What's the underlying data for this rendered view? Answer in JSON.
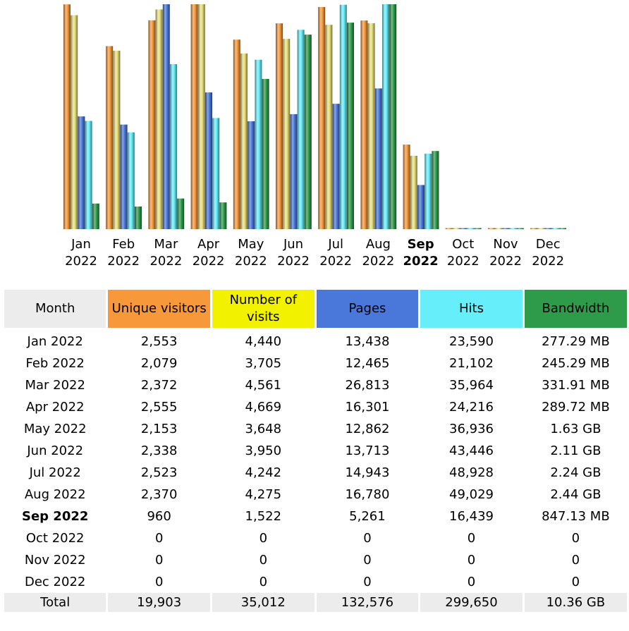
{
  "chart_data": {
    "type": "bar",
    "current_month": "Sep 2022",
    "categories": [
      "Jan 2022",
      "Feb 2022",
      "Mar 2022",
      "Apr 2022",
      "May 2022",
      "Jun 2022",
      "Jul 2022",
      "Aug 2022",
      "Sep 2022",
      "Oct 2022",
      "Nov 2022",
      "Dec 2022"
    ],
    "tick_labels": [
      {
        "m": "Jan",
        "y": "2022"
      },
      {
        "m": "Feb",
        "y": "2022"
      },
      {
        "m": "Mar",
        "y": "2022"
      },
      {
        "m": "Apr",
        "y": "2022"
      },
      {
        "m": "May",
        "y": "2022"
      },
      {
        "m": "Jun",
        "y": "2022"
      },
      {
        "m": "Jul",
        "y": "2022"
      },
      {
        "m": "Aug",
        "y": "2022"
      },
      {
        "m": "Sep",
        "y": "2022"
      },
      {
        "m": "Oct",
        "y": "2022"
      },
      {
        "m": "Nov",
        "y": "2022"
      },
      {
        "m": "Dec",
        "y": "2022"
      }
    ],
    "series": [
      {
        "name": "Unique visitors",
        "color": "#f7983a",
        "values": [
          2553,
          2079,
          2372,
          2555,
          2153,
          2338,
          2523,
          2370,
          960,
          0,
          0,
          0
        ]
      },
      {
        "name": "Number of visits",
        "color": "#e8e07a",
        "values": [
          4440,
          3705,
          4561,
          4669,
          3648,
          3950,
          4242,
          4275,
          1522,
          0,
          0,
          0
        ]
      },
      {
        "name": "Pages",
        "color": "#4a78da",
        "values": [
          13438,
          12465,
          26813,
          16301,
          12862,
          13713,
          14943,
          16780,
          5261,
          0,
          0,
          0
        ]
      },
      {
        "name": "Hits",
        "color": "#66eefa",
        "values": [
          23590,
          21102,
          35964,
          24216,
          36936,
          43446,
          48928,
          49029,
          16439,
          0,
          0,
          0
        ]
      },
      {
        "name": "Bandwidth",
        "color": "#2d9b4a",
        "values": [
          277.29,
          245.29,
          331.91,
          289.72,
          1630,
          2110,
          2240,
          2440,
          847.13,
          0,
          0,
          0
        ],
        "unit": "MB"
      }
    ]
  },
  "table": {
    "headers": {
      "month": "Month",
      "unique_visitors": "Unique visitors",
      "visits": "Number of visits",
      "pages": "Pages",
      "hits": "Hits",
      "bandwidth": "Bandwidth"
    },
    "rows": [
      {
        "month": "Jan 2022",
        "uv": "2,553",
        "visits": "4,440",
        "pages": "13,438",
        "hits": "23,590",
        "bw": "277.29 MB"
      },
      {
        "month": "Feb 2022",
        "uv": "2,079",
        "visits": "3,705",
        "pages": "12,465",
        "hits": "21,102",
        "bw": "245.29 MB"
      },
      {
        "month": "Mar 2022",
        "uv": "2,372",
        "visits": "4,561",
        "pages": "26,813",
        "hits": "35,964",
        "bw": "331.91 MB"
      },
      {
        "month": "Apr 2022",
        "uv": "2,555",
        "visits": "4,669",
        "pages": "16,301",
        "hits": "24,216",
        "bw": "289.72 MB"
      },
      {
        "month": "May 2022",
        "uv": "2,153",
        "visits": "3,648",
        "pages": "12,862",
        "hits": "36,936",
        "bw": "1.63 GB"
      },
      {
        "month": "Jun 2022",
        "uv": "2,338",
        "visits": "3,950",
        "pages": "13,713",
        "hits": "43,446",
        "bw": "2.11 GB"
      },
      {
        "month": "Jul 2022",
        "uv": "2,523",
        "visits": "4,242",
        "pages": "14,943",
        "hits": "48,928",
        "bw": "2.24 GB"
      },
      {
        "month": "Aug 2022",
        "uv": "2,370",
        "visits": "4,275",
        "pages": "16,780",
        "hits": "49,029",
        "bw": "2.44 GB"
      },
      {
        "month": "Sep 2022",
        "uv": "960",
        "visits": "1,522",
        "pages": "5,261",
        "hits": "16,439",
        "bw": "847.13 MB"
      },
      {
        "month": "Oct 2022",
        "uv": "0",
        "visits": "0",
        "pages": "0",
        "hits": "0",
        "bw": "0"
      },
      {
        "month": "Nov 2022",
        "uv": "0",
        "visits": "0",
        "pages": "0",
        "hits": "0",
        "bw": "0"
      },
      {
        "month": "Dec 2022",
        "uv": "0",
        "visits": "0",
        "pages": "0",
        "hits": "0",
        "bw": "0"
      }
    ],
    "total": {
      "label": "Total",
      "uv": "19,903",
      "visits": "35,012",
      "pages": "132,576",
      "hits": "299,650",
      "bw": "10.36 GB"
    }
  }
}
